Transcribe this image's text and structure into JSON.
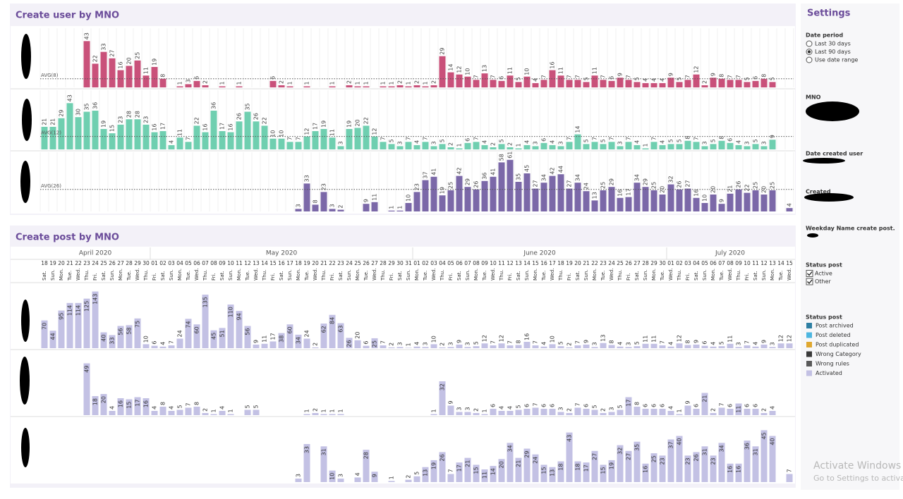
{
  "settings": {
    "title": "Settings",
    "date_period": {
      "label": "Date period",
      "options": [
        "Last 30 days",
        "Last 90 days",
        "Use date range"
      ],
      "selected": 1
    },
    "mno": "MNO",
    "date_created_user": "Date created user",
    "created": "Created",
    "weekday": "Weekday Name create post.",
    "status_filter": {
      "label": "Status post",
      "options": [
        "Active",
        "Other"
      ]
    }
  },
  "watermark": {
    "title": "Activate Windows",
    "subtitle": "Go to Settings to activate Windows."
  },
  "chart_data": [
    {
      "type": "bar",
      "title": "Create user  by MNO",
      "panels": [
        {
          "color": "#c9517a",
          "ylim": [
            0,
            55
          ],
          "avg": {
            "value": 8,
            "label": "AVG(8)"
          },
          "values": [
            null,
            null,
            null,
            null,
            null,
            43,
            22,
            33,
            27,
            16,
            20,
            25,
            11,
            19,
            8,
            null,
            1,
            3,
            6,
            2,
            null,
            1,
            null,
            1,
            null,
            null,
            null,
            6,
            2,
            1,
            null,
            1,
            null,
            null,
            1,
            null,
            2,
            1,
            1,
            null,
            1,
            1,
            2,
            1,
            2,
            1,
            2,
            29,
            14,
            12,
            10,
            7,
            13,
            7,
            6,
            11,
            5,
            10,
            4,
            7,
            16,
            11,
            7,
            7,
            5,
            11,
            7,
            6,
            9,
            7,
            5,
            4,
            4,
            4,
            9,
            5,
            7,
            12,
            2,
            9,
            8,
            7,
            7,
            5,
            6,
            8,
            5,
            null,
            null
          ]
        },
        {
          "color": "#6fcfb0",
          "ylim": [
            0,
            55
          ],
          "avg": {
            "value": 12,
            "label": "AVG(12)"
          },
          "values": [
            21,
            21,
            29,
            43,
            30,
            35,
            36,
            19,
            15,
            23,
            28,
            28,
            23,
            16,
            17,
            4,
            11,
            7,
            22,
            16,
            36,
            17,
            16,
            26,
            35,
            26,
            22,
            10,
            10,
            7,
            7,
            12,
            17,
            19,
            11,
            3,
            19,
            20,
            22,
            12,
            7,
            5,
            3,
            7,
            4,
            7,
            3,
            5,
            2,
            1,
            6,
            7,
            4,
            2,
            5,
            2,
            1,
            4,
            3,
            6,
            4,
            3,
            7,
            14,
            5,
            7,
            5,
            7,
            3,
            7,
            4,
            1,
            7,
            4,
            5,
            5,
            8,
            7,
            3,
            5,
            8,
            6,
            4,
            3,
            5,
            3,
            9,
            null,
            null
          ]
        },
        {
          "color": "#7b68a8",
          "ylim": [
            0,
            70
          ],
          "avg": {
            "value": 26,
            "label": "AVG(26)"
          },
          "values": [
            null,
            null,
            null,
            null,
            null,
            null,
            null,
            null,
            null,
            null,
            null,
            null,
            null,
            null,
            null,
            null,
            null,
            null,
            null,
            null,
            null,
            null,
            null,
            null,
            null,
            null,
            null,
            null,
            null,
            null,
            3,
            33,
            8,
            23,
            3,
            2,
            null,
            null,
            9,
            11,
            null,
            1,
            1,
            10,
            23,
            37,
            41,
            19,
            25,
            42,
            29,
            26,
            36,
            41,
            58,
            61,
            35,
            45,
            27,
            34,
            42,
            44,
            27,
            34,
            24,
            13,
            25,
            29,
            16,
            17,
            34,
            29,
            25,
            20,
            32,
            26,
            27,
            16,
            10,
            20,
            9,
            21,
            26,
            22,
            25,
            20,
            25,
            null,
            4
          ]
        }
      ]
    },
    {
      "type": "bar",
      "title": "Create post by MNO",
      "months": [
        "April 2020",
        "May 2020",
        "June 2020",
        "July 2020"
      ],
      "days": [
        "18",
        "19",
        "20",
        "21",
        "22",
        "23",
        "24",
        "25",
        "26",
        "27",
        "28",
        "29",
        "30",
        "01",
        "02",
        "03",
        "04",
        "05",
        "06",
        "07",
        "08",
        "09",
        "10",
        "11",
        "12",
        "13",
        "14",
        "15",
        "16",
        "17",
        "18",
        "19",
        "20",
        "21",
        "22",
        "23",
        "24",
        "25",
        "26",
        "27",
        "28",
        "29",
        "30",
        "31",
        "01",
        "02",
        "03",
        "04",
        "05",
        "06",
        "07",
        "08",
        "09",
        "10",
        "11",
        "12",
        "13",
        "14",
        "15",
        "16",
        "17",
        "18",
        "19",
        "20",
        "21",
        "22",
        "23",
        "24",
        "25",
        "26",
        "27",
        "28",
        "29",
        "30",
        "01",
        "02",
        "03",
        "04",
        "05",
        "06",
        "07",
        "08",
        "09",
        "10",
        "11",
        "12",
        "13",
        "14",
        "15"
      ],
      "weekdays": [
        "Sat.",
        "Sun.",
        "Mon.",
        "Tue.",
        "Wed.",
        "Thu.",
        "Fri.",
        "Sat.",
        "Sun.",
        "Mon.",
        "Tue.",
        "Wed.",
        "Thu.",
        "Fri.",
        "Sat.",
        "Sun.",
        "Mon.",
        "Tue.",
        "Wed.",
        "Thu.",
        "Fri.",
        "Sat.",
        "Sun.",
        "Mon.",
        "Tue.",
        "Wed.",
        "Thu.",
        "Fri.",
        "Sat.",
        "Sun.",
        "Mon.",
        "Tue.",
        "Wed.",
        "Thu.",
        "Fri.",
        "Sat.",
        "Sun.",
        "Mon.",
        "Tue.",
        "Wed.",
        "Thu.",
        "Fri.",
        "Sat.",
        "Sun.",
        "Mon.",
        "Tue.",
        "Wed.",
        "Thu.",
        "Fri.",
        "Sat.",
        "Sun.",
        "Mon.",
        "Tue.",
        "Wed.",
        "Thu.",
        "Fri.",
        "Sat.",
        "Sun.",
        "Mon.",
        "Tue.",
        "Wed.",
        "Thu.",
        "Fri.",
        "Sat.",
        "Sun.",
        "Mon.",
        "Tue.",
        "Wed.",
        "Thu.",
        "Fri.",
        "Sat.",
        "Sun.",
        "Mon.",
        "Tue.",
        "Wed.",
        "Thu.",
        "Fri.",
        "Sat.",
        "Sun.",
        "Mon.",
        "Tue.",
        "Wed.",
        "Thu.",
        "Fri.",
        "Sat.",
        "Sun.",
        "Mon.",
        "Tue.",
        "Wed."
      ],
      "legend_title": "Status post",
      "legend": [
        {
          "name": "Post archived",
          "color": "#2e7fa3"
        },
        {
          "name": "Post deleted",
          "color": "#4db6e0"
        },
        {
          "name": "Post duplicated",
          "color": "#e0a830"
        },
        {
          "name": "Wrong Category",
          "color": "#3a3a3a"
        },
        {
          "name": "Wrong rules",
          "color": "#5a5a5a"
        },
        {
          "name": "Activated",
          "color": "#c3c1e4"
        }
      ],
      "panels": [
        {
          "ylim": [
            0,
            160
          ],
          "values": [
            70,
            44,
            95,
            114,
            114,
            125,
            143,
            40,
            33,
            56,
            58,
            75,
            10,
            6,
            4,
            7,
            24,
            74,
            60,
            135,
            45,
            51,
            110,
            94,
            56,
            9,
            11,
            17,
            38,
            60,
            34,
            24,
            2,
            62,
            84,
            63,
            26,
            20,
            6,
            25,
            7,
            2,
            3,
            1,
            4,
            3,
            10,
            2,
            3,
            9,
            3,
            5,
            12,
            7,
            12,
            7,
            8,
            16,
            7,
            4,
            10,
            5,
            2,
            7,
            9,
            3,
            13,
            8,
            4,
            3,
            5,
            11,
            11,
            7,
            4,
            12,
            8,
            9,
            6,
            4,
            5,
            11,
            3,
            7,
            4,
            9,
            3,
            12,
            12
          ]
        },
        {
          "ylim": [
            0,
            60
          ],
          "values": [
            null,
            null,
            null,
            null,
            null,
            49,
            18,
            20,
            4,
            16,
            15,
            17,
            16,
            4,
            8,
            4,
            5,
            7,
            8,
            2,
            1,
            4,
            1,
            null,
            5,
            5,
            null,
            null,
            null,
            null,
            null,
            1,
            2,
            1,
            1,
            1,
            null,
            null,
            null,
            null,
            null,
            null,
            null,
            null,
            null,
            null,
            1,
            32,
            9,
            3,
            3,
            2,
            1,
            6,
            4,
            4,
            5,
            6,
            7,
            6,
            6,
            3,
            2,
            7,
            6,
            5,
            2,
            3,
            5,
            17,
            8,
            6,
            6,
            6,
            4,
            1,
            9,
            6,
            21,
            2,
            7,
            6,
            11,
            6,
            6,
            2,
            4,
            null,
            null
          ]
        },
        {
          "ylim": [
            0,
            55
          ],
          "values": [
            null,
            null,
            null,
            null,
            null,
            null,
            null,
            null,
            null,
            null,
            null,
            null,
            null,
            null,
            null,
            null,
            null,
            null,
            null,
            null,
            null,
            null,
            null,
            null,
            null,
            null,
            null,
            null,
            null,
            null,
            3,
            33,
            null,
            31,
            10,
            3,
            null,
            4,
            28,
            9,
            null,
            1,
            null,
            2,
            5,
            13,
            19,
            26,
            7,
            17,
            21,
            15,
            11,
            14,
            20,
            34,
            21,
            29,
            24,
            15,
            13,
            18,
            43,
            18,
            17,
            27,
            15,
            19,
            32,
            27,
            35,
            16,
            25,
            23,
            37,
            40,
            23,
            26,
            31,
            23,
            34,
            16,
            16,
            36,
            31,
            45,
            40,
            null,
            7
          ]
        }
      ]
    }
  ]
}
